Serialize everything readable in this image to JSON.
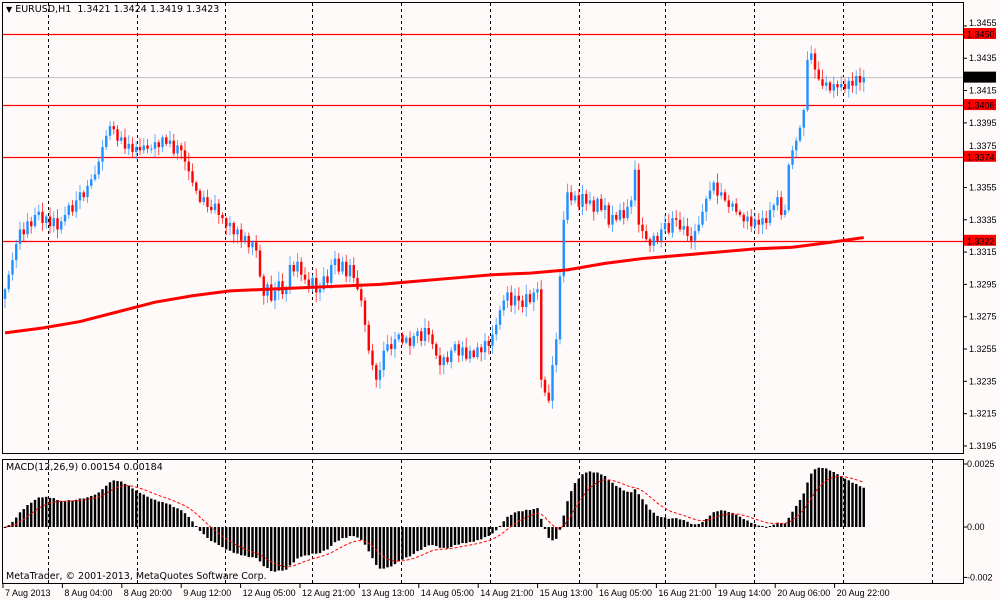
{
  "header": {
    "symbol_label": "EURUSD,H1",
    "ohlc_label": "1.3421 1.3424 1.3419 1.3423",
    "menu_icon": "triangle-down-icon"
  },
  "macd": {
    "label": "MACD(12,26,9) 0.00154 0.00184",
    "ticks": [
      "0.0025",
      "0.00",
      "-0.002"
    ],
    "tick_values": [
      0.0025,
      0,
      -0.002
    ]
  },
  "copyright": "MetaTrader, © 2001-2013, MetaQuotes Software Corp.",
  "colors": {
    "background": "#fffafa",
    "bull": "#1e90ff",
    "bear": "#ff0000",
    "level_line": "#ff0000",
    "bid_line": "#c0c0c0",
    "moving_average": "#ff0000",
    "histogram": "#000000",
    "signal": "#ff0000"
  },
  "chart_data": {
    "type": "candlestick",
    "symbol": "EURUSD",
    "timeframe": "H1",
    "ylim": [
      1.3188,
      1.3465
    ],
    "grid": "vertical dashed",
    "y_ticks": [
      "1.3455",
      "1.3435",
      "1.3415",
      "1.3395",
      "1.3375",
      "1.3355",
      "1.3335",
      "1.3315",
      "1.3295",
      "1.3275",
      "1.3255",
      "1.3235",
      "1.3215",
      "1.3195"
    ],
    "x_ticks": [
      "7 Aug 2013",
      "8 Aug 04:00",
      "8 Aug 20:00",
      "9 Aug 12:00",
      "12 Aug 05:00",
      "12 Aug 21:00",
      "13 Aug 13:00",
      "14 Aug 05:00",
      "14 Aug 21:00",
      "15 Aug 13:00",
      "16 Aug 05:00",
      "16 Aug 21:00",
      "19 Aug 14:00",
      "20 Aug 06:00",
      "20 Aug 22:00"
    ],
    "levels": [
      {
        "value": 1.345,
        "label": "1.3450"
      },
      {
        "value": 1.3406,
        "label": "1.3406"
      },
      {
        "value": 1.3374,
        "label": "1.3374"
      },
      {
        "value": 1.3322,
        "label": "1.3322"
      }
    ],
    "bid": {
      "value": 1.3423,
      "label": "1.3423"
    },
    "closes": [
      1.3292,
      1.3301,
      1.331,
      1.332,
      1.3329,
      1.3326,
      1.3334,
      1.3331,
      1.3338,
      1.334,
      1.3333,
      1.3337,
      1.3331,
      1.3336,
      1.3329,
      1.3334,
      1.3338,
      1.3344,
      1.334,
      1.3347,
      1.3352,
      1.3349,
      1.3356,
      1.336,
      1.3363,
      1.3371,
      1.338,
      1.3387,
      1.3393,
      1.3391,
      1.3384,
      1.3386,
      1.3379,
      1.3382,
      1.3377,
      1.338,
      1.3378,
      1.3381,
      1.3379,
      1.3379,
      1.3383,
      1.338,
      1.3386,
      1.3382,
      1.3384,
      1.3376,
      1.3381,
      1.3378,
      1.3371,
      1.3365,
      1.3358,
      1.3353,
      1.3346,
      1.3349,
      1.3343,
      1.3341,
      1.3345,
      1.3338,
      1.3336,
      1.3331,
      1.3333,
      1.3326,
      1.3329,
      1.3322,
      1.3325,
      1.3318,
      1.3321,
      1.3316,
      1.33,
      1.3288,
      1.3295,
      1.3285,
      1.3291,
      1.3297,
      1.3289,
      1.3292,
      1.3307,
      1.3303,
      1.3309,
      1.3301,
      1.3298,
      1.3293,
      1.3299,
      1.329,
      1.3292,
      1.33,
      1.3296,
      1.3307,
      1.3311,
      1.3303,
      1.3309,
      1.33,
      1.3307,
      1.3299,
      1.3292,
      1.3285,
      1.327,
      1.3254,
      1.3245,
      1.3236,
      1.3242,
      1.3254,
      1.3258,
      1.3255,
      1.3261,
      1.3264,
      1.3259,
      1.3262,
      1.3257,
      1.3263,
      1.3266,
      1.326,
      1.3268,
      1.3264,
      1.3258,
      1.3251,
      1.3245,
      1.325,
      1.3247,
      1.3254,
      1.3258,
      1.3251,
      1.3256,
      1.3249,
      1.3254,
      1.325,
      1.3256,
      1.3253,
      1.326,
      1.3257,
      1.3264,
      1.327,
      1.3279,
      1.3285,
      1.329,
      1.3282,
      1.3288,
      1.3285,
      1.3281,
      1.3289,
      1.3284,
      1.329,
      1.3292,
      1.3236,
      1.3228,
      1.3223,
      1.3245,
      1.3261,
      1.33,
      1.3335,
      1.3352,
      1.3347,
      1.335,
      1.3343,
      1.3351,
      1.3345,
      1.3347,
      1.334,
      1.3348,
      1.3341,
      1.3344,
      1.3332,
      1.3338,
      1.3335,
      1.3341,
      1.3336,
      1.3343,
      1.3347,
      1.3366,
      1.3332,
      1.3328,
      1.3323,
      1.3319,
      1.3325,
      1.3322,
      1.3329,
      1.3333,
      1.3327,
      1.3336,
      1.3335,
      1.3329,
      1.3331,
      1.3325,
      1.3322,
      1.3328,
      1.3332,
      1.334,
      1.3348,
      1.3353,
      1.3358,
      1.335,
      1.3352,
      1.3347,
      1.3343,
      1.3345,
      1.334,
      1.3338,
      1.3334,
      1.3337,
      1.3331,
      1.3335,
      1.3332,
      1.3336,
      1.3333,
      1.3341,
      1.3344,
      1.3349,
      1.3338,
      1.3341,
      1.3369,
      1.3378,
      1.3384,
      1.3392,
      1.3403,
      1.3434,
      1.3438,
      1.3428,
      1.3422,
      1.3418,
      1.342,
      1.3415,
      1.3419,
      1.3417,
      1.3419,
      1.3416,
      1.3421,
      1.3418,
      1.3424,
      1.342,
      1.3423
    ],
    "moving_average_every_10_bars": [
      1.3265,
      1.3268,
      1.3272,
      1.3278,
      1.3284,
      1.3288,
      1.3291,
      1.3292,
      1.3293,
      1.3294,
      1.3295,
      1.3297,
      1.3299,
      1.3301,
      1.3302,
      1.3304,
      1.3308,
      1.3311,
      1.3313,
      1.3315,
      1.3317,
      1.3318,
      1.3321,
      1.3324
    ],
    "macd_params": [
      12,
      26,
      9
    ],
    "macd_ylim": [
      -0.0021,
      0.0029
    ]
  }
}
